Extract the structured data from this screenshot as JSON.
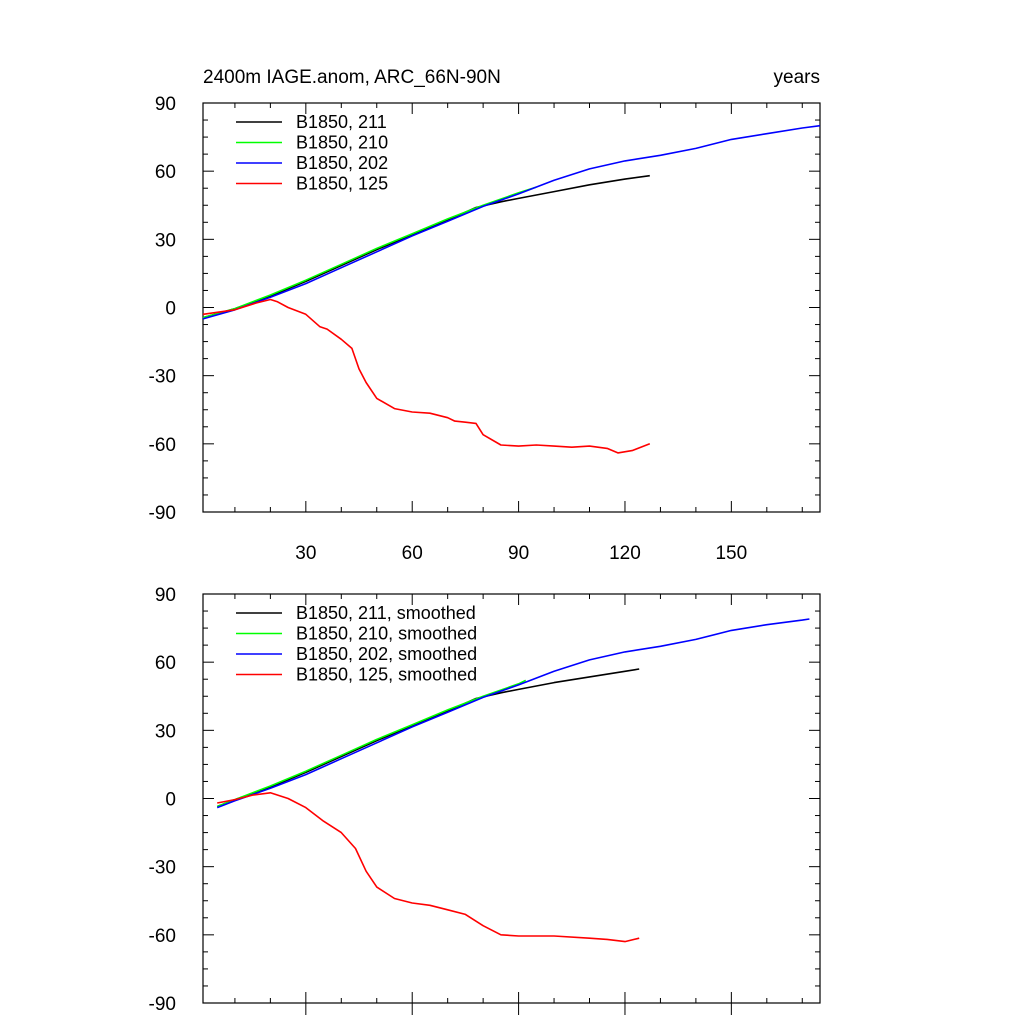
{
  "figure": {
    "title_left": "2400m IAGE.anom, ARC_66N-90N",
    "title_right": "years"
  },
  "chart_data": [
    {
      "type": "line",
      "panel": "top",
      "title": "2400m IAGE.anom, ARC_66N-90N",
      "units_label": "years",
      "xlim": [
        1,
        175
      ],
      "ylim": [
        -90,
        90
      ],
      "x_ticks": [
        30,
        60,
        90,
        120,
        150
      ],
      "x_tick_labels": [
        "30",
        "60",
        "90",
        "120",
        "150"
      ],
      "y_ticks": [
        -90,
        -60,
        -30,
        0,
        30,
        60,
        90
      ],
      "y_tick_labels": [
        "-90",
        "-60",
        "-30",
        "0",
        "30",
        "60",
        "90"
      ],
      "legend_position": "top-left",
      "series": [
        {
          "name": "B1850, 211",
          "color": "#000000",
          "x": [
            1,
            10,
            20,
            30,
            40,
            50,
            60,
            70,
            78,
            85,
            90,
            100,
            110,
            120,
            127
          ],
          "y": [
            -4.5,
            -0.5,
            5,
            11.5,
            18.5,
            25.5,
            32,
            38.5,
            44,
            46.5,
            48,
            51,
            54,
            56.5,
            58
          ]
        },
        {
          "name": "B1850, 210",
          "color": "#00ff00",
          "x": [
            1,
            10,
            20,
            30,
            40,
            50,
            60,
            70,
            80,
            90,
            95
          ],
          "y": [
            -4.5,
            -0.5,
            5.5,
            12,
            19,
            26,
            32.5,
            39,
            45,
            50.5,
            53
          ]
        },
        {
          "name": "B1850, 202",
          "color": "#0000ff",
          "x": [
            1,
            10,
            20,
            30,
            40,
            50,
            60,
            70,
            80,
            90,
            100,
            110,
            120,
            130,
            140,
            150,
            160,
            170,
            175
          ],
          "y": [
            -5,
            -1,
            4.5,
            10.5,
            17.5,
            24.5,
            31.5,
            38,
            44.5,
            50,
            56,
            61,
            64.5,
            67,
            70,
            74,
            76.5,
            79,
            80
          ]
        },
        {
          "name": "B1850, 125",
          "color": "#ff0000",
          "x": [
            1,
            10,
            16,
            20,
            22,
            25,
            30,
            34,
            36,
            40,
            43,
            45,
            47,
            50,
            55,
            60,
            65,
            70,
            72,
            75,
            78,
            80,
            85,
            90,
            95,
            100,
            105,
            110,
            115,
            118,
            122,
            127
          ],
          "y": [
            -3,
            -1,
            2,
            3.5,
            2.5,
            0,
            -3,
            -8.5,
            -9.5,
            -14,
            -18,
            -27,
            -33,
            -40,
            -44.5,
            -46,
            -46.5,
            -48.5,
            -50,
            -50.5,
            -51,
            -56,
            -60.5,
            -61,
            -60.5,
            -61,
            -61.5,
            -61,
            -62,
            -64,
            -63,
            -60
          ]
        }
      ]
    },
    {
      "type": "line",
      "panel": "bottom",
      "xlim": [
        1,
        175
      ],
      "ylim": [
        -90,
        90
      ],
      "x_ticks": [
        30,
        60,
        90,
        120,
        150
      ],
      "y_ticks": [
        -90,
        -60,
        -30,
        0,
        30,
        60,
        90
      ],
      "y_tick_labels": [
        "-90",
        "-60",
        "-30",
        "0",
        "30",
        "60",
        "90"
      ],
      "legend_position": "top-left",
      "series": [
        {
          "name": "B1850, 211, smoothed",
          "color": "#000000",
          "x": [
            5,
            10,
            20,
            30,
            40,
            50,
            60,
            70,
            78,
            85,
            90,
            100,
            110,
            120,
            124
          ],
          "y": [
            -3.5,
            -0.5,
            5,
            11.5,
            18.5,
            25.5,
            32,
            38.5,
            44,
            46.5,
            48,
            51,
            53.5,
            56,
            57
          ]
        },
        {
          "name": "B1850, 210, smoothed",
          "color": "#00ff00",
          "x": [
            5,
            10,
            20,
            30,
            40,
            50,
            60,
            70,
            80,
            90,
            92
          ],
          "y": [
            -3.5,
            -0.5,
            5.5,
            12,
            19,
            26,
            32.5,
            39,
            45,
            50.5,
            52
          ]
        },
        {
          "name": "B1850, 202, smoothed",
          "color": "#0000ff",
          "x": [
            5,
            10,
            20,
            30,
            40,
            50,
            60,
            70,
            80,
            90,
            100,
            110,
            120,
            130,
            140,
            150,
            160,
            170,
            172
          ],
          "y": [
            -4,
            -1,
            4.5,
            10.5,
            17.5,
            24.5,
            31.5,
            38,
            44.5,
            50,
            56,
            61,
            64.5,
            67,
            70,
            74,
            76.5,
            78.5,
            79
          ]
        },
        {
          "name": "B1850, 125, smoothed",
          "color": "#ff0000",
          "x": [
            5,
            10,
            15,
            20,
            25,
            30,
            35,
            40,
            44,
            47,
            50,
            55,
            60,
            65,
            70,
            75,
            80,
            85,
            90,
            100,
            110,
            115,
            120,
            124
          ],
          "y": [
            -2,
            -0.5,
            1.5,
            2.5,
            0,
            -4,
            -10,
            -15,
            -22,
            -32,
            -39,
            -44,
            -46,
            -47,
            -49,
            -51,
            -56,
            -60,
            -60.5,
            -60.5,
            -61.5,
            -62,
            -63,
            -61.5
          ]
        }
      ]
    }
  ]
}
